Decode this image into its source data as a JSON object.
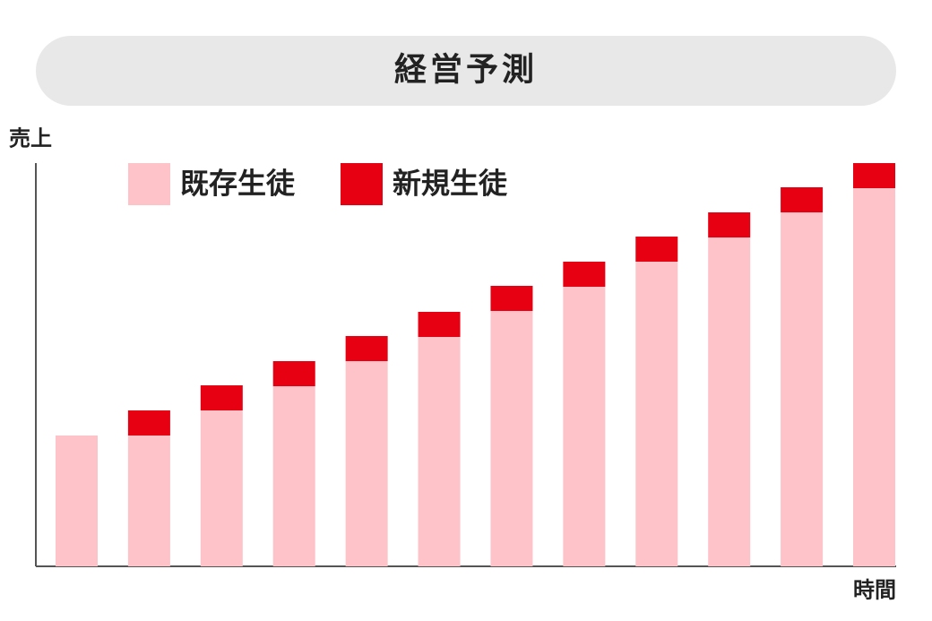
{
  "chart_data": {
    "type": "stacked-bar",
    "title": "経営予測",
    "y_label": "売上",
    "x_label": "時間",
    "categories": [
      null,
      null,
      null,
      null,
      null,
      null,
      null,
      null,
      null,
      null,
      null,
      null
    ],
    "series": [
      {
        "name": "既存生徒",
        "color": "#fdc3c9",
        "values": [
          146,
          146,
          174,
          201,
          229,
          256,
          285,
          312,
          340,
          367,
          395,
          422
        ]
      },
      {
        "name": "新規生徒",
        "color": "#e60012",
        "values": [
          0,
          28,
          28,
          28,
          28,
          28,
          28,
          28,
          28,
          28,
          28,
          28
        ]
      }
    ],
    "ylim": [
      0,
      450
    ],
    "grid": false
  }
}
